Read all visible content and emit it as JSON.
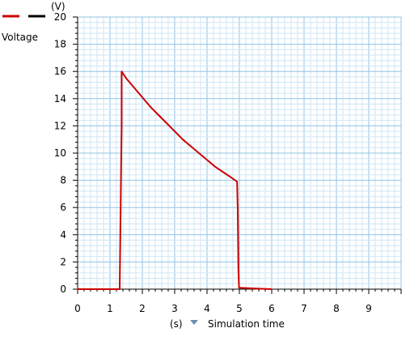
{
  "chart_data": {
    "type": "line",
    "title": "",
    "xlabel": "Simulation time",
    "xunit": "(s)",
    "ylabel": "Voltage",
    "yunit": "(V)",
    "xlim": [
      0,
      10
    ],
    "ylim": [
      0,
      20
    ],
    "x_ticks": [
      "0",
      "1",
      "2",
      "3",
      "4",
      "5",
      "6",
      "7",
      "8",
      "9"
    ],
    "y_ticks": [
      "0",
      "2",
      "4",
      "6",
      "8",
      "10",
      "12",
      "14",
      "16",
      "18",
      "20"
    ],
    "grid": true,
    "legend": "top-left",
    "series": [
      {
        "name": "Voltage",
        "color": "#cc0000",
        "x": [
          0,
          1.3,
          1.32,
          1.36,
          1.36,
          1.5,
          1.75,
          2.0,
          2.25,
          2.5,
          2.75,
          3.0,
          3.25,
          3.5,
          3.75,
          4.0,
          4.25,
          4.5,
          4.75,
          4.93,
          4.95,
          4.97,
          4.99,
          5.5,
          6.0
        ],
        "y": [
          0,
          0,
          4,
          12,
          16,
          15.5,
          14.8,
          14.1,
          13.4,
          12.8,
          12.2,
          11.6,
          11.0,
          10.5,
          10.0,
          9.5,
          9.0,
          8.6,
          8.2,
          7.9,
          5.8,
          1.5,
          0.1,
          0.05,
          0
        ]
      }
    ]
  },
  "legend_swatches": [
    "#cc0000",
    "#000000"
  ],
  "time_dropdown": {
    "icon": "triangle-down-icon"
  }
}
